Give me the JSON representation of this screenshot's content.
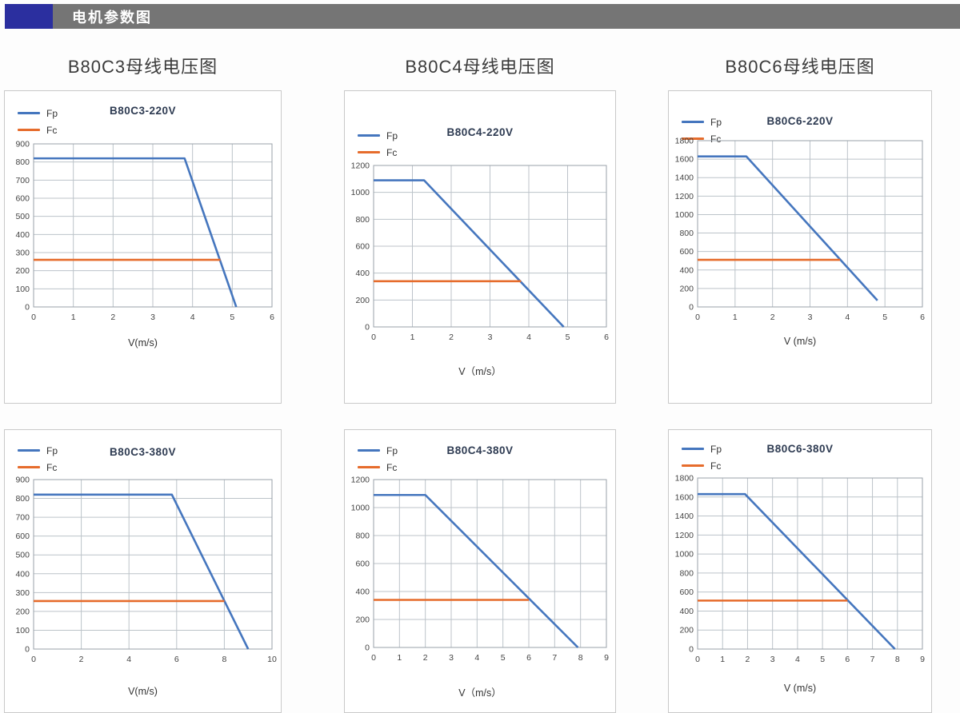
{
  "header": {
    "title": "电机参数图",
    "accent_color": "#2b2f9f",
    "bar_color": "#757575"
  },
  "section_titles": {
    "col1": "B80C3母线电压图",
    "col2": "B80C4母线电压图",
    "col3": "B80C6母线电压图"
  },
  "colors": {
    "fp_line": "#4576be",
    "fc_line": "#e66c2c",
    "grid": "#bcc3c9",
    "plot_border": "#9aa2aa",
    "tick_text": "#444444"
  },
  "chart_data": [
    {
      "type": "line",
      "title": "B80C3-220V",
      "xlabel": "V(m/s)",
      "xlim": [
        0,
        6
      ],
      "xstep": 1,
      "ylim": [
        0,
        900
      ],
      "ystep": 100,
      "grid": true,
      "legend_position": "top-left",
      "series": [
        {
          "name": "Fp",
          "color_key": "fp_line",
          "points": [
            [
              0,
              820
            ],
            [
              3.8,
              820
            ],
            [
              5.1,
              0
            ]
          ]
        },
        {
          "name": "Fc",
          "color_key": "fc_line",
          "points": [
            [
              0,
              260
            ],
            [
              4.7,
              260
            ]
          ]
        }
      ]
    },
    {
      "type": "line",
      "title": "B80C4-220V",
      "xlabel": "V（m/s）",
      "xlim": [
        0,
        6
      ],
      "xstep": 1,
      "ylim": [
        0,
        1200
      ],
      "ystep": 200,
      "grid": true,
      "legend_position": "top-left",
      "series": [
        {
          "name": "Fp",
          "color_key": "fp_line",
          "points": [
            [
              0,
              1090
            ],
            [
              1.3,
              1090
            ],
            [
              4.9,
              0
            ]
          ]
        },
        {
          "name": "Fc",
          "color_key": "fc_line",
          "points": [
            [
              0,
              340
            ],
            [
              3.8,
              340
            ]
          ]
        }
      ]
    },
    {
      "type": "line",
      "title": "B80C6-220V",
      "xlabel": "V (m/s)",
      "xlim": [
        0,
        6
      ],
      "xstep": 1,
      "ylim": [
        0,
        1800
      ],
      "ystep": 200,
      "grid": true,
      "legend_position": "top-left",
      "series": [
        {
          "name": "Fp",
          "color_key": "fp_line",
          "points": [
            [
              0,
              1630
            ],
            [
              1.3,
              1630
            ],
            [
              4.8,
              70
            ]
          ]
        },
        {
          "name": "Fc",
          "color_key": "fc_line",
          "points": [
            [
              0,
              510
            ],
            [
              3.8,
              510
            ]
          ]
        }
      ]
    },
    {
      "type": "line",
      "title": "B80C3-380V",
      "xlabel": "V(m/s)",
      "xlim": [
        0,
        10
      ],
      "xstep": 2,
      "ylim": [
        0,
        900
      ],
      "ystep": 100,
      "grid": true,
      "legend_position": "top-left",
      "series": [
        {
          "name": "Fp",
          "color_key": "fp_line",
          "points": [
            [
              0,
              820
            ],
            [
              5.8,
              820
            ],
            [
              9,
              0
            ]
          ]
        },
        {
          "name": "Fc",
          "color_key": "fc_line",
          "points": [
            [
              0,
              255
            ],
            [
              8,
              255
            ]
          ]
        }
      ]
    },
    {
      "type": "line",
      "title": "B80C4-380V",
      "xlabel": "V（m/s）",
      "xlim": [
        0,
        9
      ],
      "xstep": 1,
      "ylim": [
        0,
        1200
      ],
      "ystep": 200,
      "grid": true,
      "legend_position": "top-left",
      "series": [
        {
          "name": "Fp",
          "color_key": "fp_line",
          "points": [
            [
              0,
              1090
            ],
            [
              2,
              1090
            ],
            [
              7.9,
              0
            ]
          ]
        },
        {
          "name": "Fc",
          "color_key": "fc_line",
          "points": [
            [
              0,
              340
            ],
            [
              6,
              340
            ]
          ]
        }
      ]
    },
    {
      "type": "line",
      "title": "B80C6-380V",
      "xlabel": "V (m/s)",
      "xlim": [
        0,
        9
      ],
      "xstep": 1,
      "ylim": [
        0,
        1800
      ],
      "ystep": 200,
      "grid": true,
      "legend_position": "top-left",
      "series": [
        {
          "name": "Fp",
          "color_key": "fp_line",
          "points": [
            [
              0,
              1630
            ],
            [
              1.9,
              1630
            ],
            [
              7.9,
              0
            ]
          ]
        },
        {
          "name": "Fc",
          "color_key": "fc_line",
          "points": [
            [
              0,
              510
            ],
            [
              6,
              510
            ]
          ]
        }
      ]
    }
  ]
}
